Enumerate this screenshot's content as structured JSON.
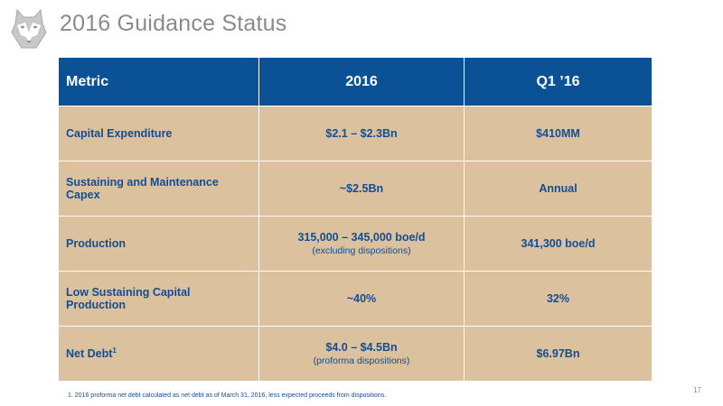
{
  "header": {
    "title": "2016 Guidance Status"
  },
  "table": {
    "headers": [
      "Metric",
      "2016",
      "Q1 ’16"
    ],
    "rows": [
      {
        "metric": "Capital Expenditure",
        "guidance": "$2.1 – $2.3Bn",
        "q1": "$410MM"
      },
      {
        "metric": "Sustaining and Maintenance Capex",
        "guidance": "~$2.5Bn",
        "q1": "Annual"
      },
      {
        "metric": "Production",
        "guidance": "315,000 – 345,000 boe/d",
        "guidance_note": "(excluding dispositions)",
        "q1": "341,300 boe/d"
      },
      {
        "metric": "Low Sustaining Capital Production",
        "guidance": "~40%",
        "q1": "32%"
      },
      {
        "metric": "Net Debt",
        "metric_sup": "1",
        "guidance": "$4.0 – $4.5Bn",
        "guidance_note": "(proforma dispositions)",
        "q1": "$6.97Bn"
      }
    ]
  },
  "footer": {
    "footnote": "1. 2016 proforma net debt calculated as net debt as of March 31, 2016, less expected proceeds from dispositions.",
    "page_number": "17"
  },
  "colors": {
    "header_bg": "#0a5196",
    "row_bg": "#dcc19e",
    "row_text": "#134d92",
    "title_text": "#8a8a8a"
  },
  "icons": {
    "logo": "husky-dog-logo"
  }
}
